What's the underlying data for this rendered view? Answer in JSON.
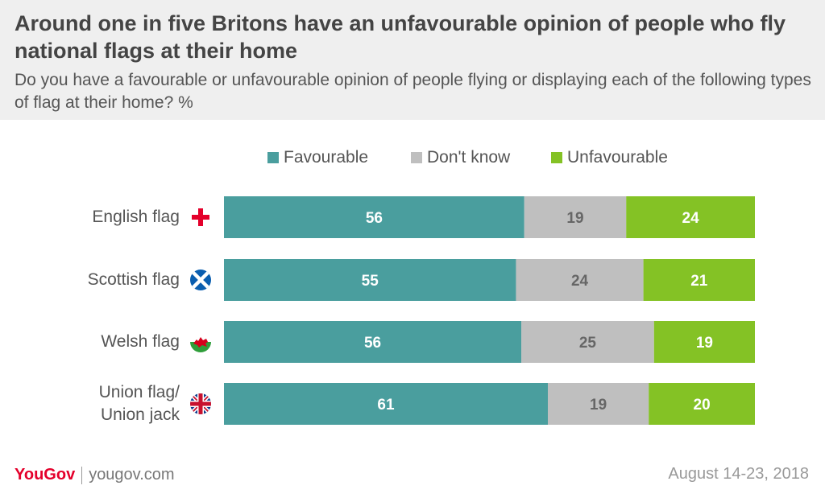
{
  "header": {
    "title": "Around one in five Britons have an unfavourable opinion of people who fly national flags at their home",
    "subtitle": "Do you have a favourable or unfavourable opinion of people flying or displaying each of the following types of flag at their home? %"
  },
  "colors": {
    "favourable": "#4a9e9e",
    "dont_know": "#bfbfbf",
    "unfavourable": "#84c225",
    "header_bg": "#efefef",
    "brand": "#e4002b"
  },
  "chart_data": {
    "type": "bar",
    "orientation": "horizontal",
    "stacked": true,
    "categories": [
      "English flag",
      "Scottish flag",
      "Welsh flag",
      "Union flag/\nUnion jack"
    ],
    "category_lines": [
      [
        "English flag"
      ],
      [
        "Scottish flag"
      ],
      [
        "Welsh flag"
      ],
      [
        "Union flag/",
        "Union jack"
      ]
    ],
    "category_icons": [
      "england-flag-icon",
      "scotland-flag-icon",
      "wales-flag-icon",
      "union-jack-icon"
    ],
    "series": [
      {
        "name": "Favourable",
        "values": [
          56,
          55,
          56,
          61
        ],
        "color": "#4a9e9e"
      },
      {
        "name": "Don't know",
        "values": [
          19,
          24,
          25,
          19
        ],
        "color": "#bfbfbf"
      },
      {
        "name": "Unfavourable",
        "values": [
          24,
          21,
          19,
          20
        ],
        "color": "#84c225"
      }
    ],
    "legend_position": "top",
    "grid": false
  },
  "footer": {
    "brand": "YouGov",
    "url": "yougov.com",
    "date": "August 14-23, 2018"
  }
}
